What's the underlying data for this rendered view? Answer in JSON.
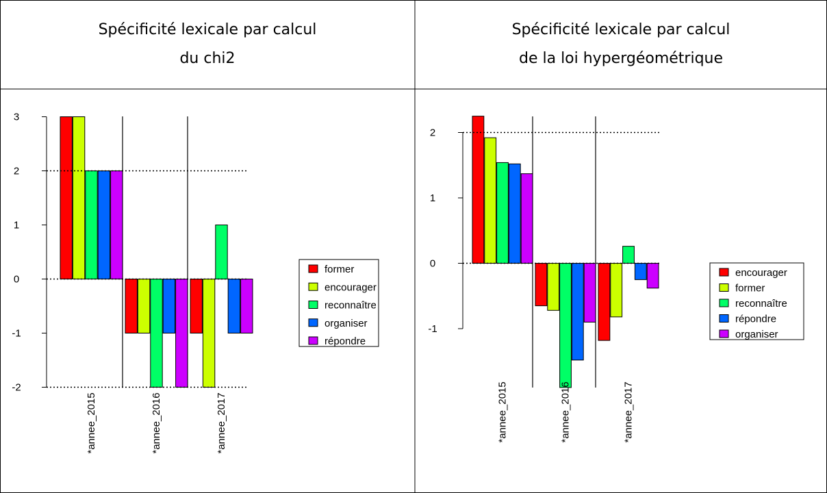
{
  "panels": [
    {
      "title_line1": "Spécificité lexicale par calcul",
      "title_line2": "du chi2"
    },
    {
      "title_line1": "Spécificité lexicale par calcul",
      "title_line2": "de la loi hypergéométrique"
    }
  ],
  "chart_data": [
    {
      "type": "bar",
      "title": "Spécificité lexicale par calcul du chi2",
      "categories": [
        "*annee_2015",
        "*annee_2016",
        "*annee_2017"
      ],
      "series": [
        {
          "name": "former",
          "color": "#ff0000",
          "values": [
            3,
            -1,
            -1
          ]
        },
        {
          "name": "encourager",
          "color": "#ccff00",
          "values": [
            3,
            -1,
            -2
          ]
        },
        {
          "name": "reconnaître",
          "color": "#00ff66",
          "values": [
            2,
            -2,
            1
          ]
        },
        {
          "name": "organiser",
          "color": "#0066ff",
          "values": [
            2,
            -1,
            -1
          ]
        },
        {
          "name": "répondre",
          "color": "#cc00ff",
          "values": [
            2,
            -2,
            -1
          ]
        }
      ],
      "yticks": [
        3,
        2,
        1,
        0,
        -1,
        -2
      ],
      "ylim": [
        -2,
        3
      ],
      "threshold_lines": [
        2,
        0,
        -2
      ],
      "legend_position": "right"
    },
    {
      "type": "bar",
      "title": "Spécificité lexicale par calcul de la loi hypergéométrique",
      "categories": [
        "*annee_2015",
        "*annee_2016",
        "*annee_2017"
      ],
      "series": [
        {
          "name": "encourager",
          "color": "#ff0000",
          "values": [
            2.25,
            -0.65,
            -1.18
          ]
        },
        {
          "name": "former",
          "color": "#ccff00",
          "values": [
            1.92,
            -0.72,
            -0.82
          ]
        },
        {
          "name": "reconnaître",
          "color": "#00ff66",
          "values": [
            1.54,
            -1.9,
            0.26
          ]
        },
        {
          "name": "répondre",
          "color": "#0066ff",
          "values": [
            1.52,
            -1.48,
            -0.25
          ]
        },
        {
          "name": "organiser",
          "color": "#cc00ff",
          "values": [
            1.37,
            -0.9,
            -0.38
          ]
        }
      ],
      "yticks": [
        2,
        1,
        0,
        -1
      ],
      "ylim": [
        -1.9,
        2.25
      ],
      "threshold_lines": [
        2,
        0
      ],
      "legend_position": "right"
    }
  ]
}
